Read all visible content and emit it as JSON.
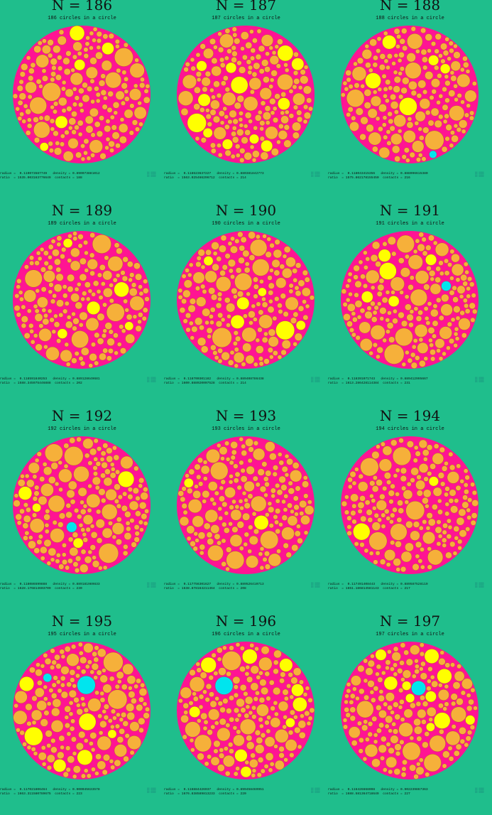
{
  "colors": {
    "background": "#1fbe8c",
    "disk": "#ff1493",
    "circle_orange": "#f6b03a",
    "circle_yellow": "#ffff00",
    "circle_cyan": "#00e5ee"
  },
  "panels": [
    {
      "title": "N = 186",
      "subtitle": "186 circles in a circle",
      "stats1": "radius =  0.119073587749   density = 0.890073881012",
      "stats2": "ratio  = 1535.003163776649  contacts = 188",
      "has_cyan": false
    },
    {
      "title": "N = 187",
      "subtitle": "187 circles in a circle",
      "stats1": "radius =  0.118623637227   density = 0.880381842773",
      "stats2": "ratio  = 1563.025466296712  contacts = 214",
      "has_cyan": false
    },
    {
      "title": "N = 188",
      "subtitle": "188 circles in a circle",
      "stats1": "radius =  0.118043415356   density = 0.888096615380",
      "stats2": "ratio  = 1575.862178155450  contacts = 216",
      "has_cyan": true
    },
    {
      "title": "N = 189",
      "subtitle": "189 circles in a circle",
      "stats1": "radius =  0.118591840253   density = 0.889128649681",
      "stats2": "ratio  = 1588.345975446888  contacts = 202",
      "has_cyan": false
    },
    {
      "title": "N = 190",
      "subtitle": "190 circles in a circle",
      "stats1": "radius =  0.118700301182   density = 0.889408786438",
      "stats2": "ratio  = 1600.888920007528  contacts = 214",
      "has_cyan": false
    },
    {
      "title": "N = 191",
      "subtitle": "191 circles in a circle",
      "stats1": "radius =  0.118391071743   density = 0.889412995667",
      "stats2": "ratio  = 1613.286428114384  contacts = 231",
      "has_cyan": true
    },
    {
      "title": "N = 192",
      "subtitle": "192 circles in a circle",
      "stats1": "radius =  0.118086599888   density = 0.889181989833",
      "stats2": "ratio  = 1628.176814603709  contacts = 230",
      "has_cyan": true
    },
    {
      "title": "N = 193",
      "subtitle": "193 circles in a circle",
      "stats1": "radius =  0.117756301627   density = 0.889526410713",
      "stats2": "ratio  = 1638.878164211464  contacts = 208",
      "has_cyan": false
    },
    {
      "title": "N = 194",
      "subtitle": "194 circles in a circle",
      "stats1": "radius =  0.117491408443   density = 0.889587528119",
      "stats2": "ratio  = 1651.186814581143  contacts = 217",
      "has_cyan": true
    },
    {
      "title": "N = 195",
      "subtitle": "195 circles in a circle",
      "stats1": "radius =  0.117021806464   density = 0.900045633578",
      "stats2": "ratio  = 1663.311580789675  contacts = 223",
      "has_cyan": true
    },
    {
      "title": "N = 196",
      "subtitle": "196 circles in a circle",
      "stats1": "radius =  0.116884426937   density = 0.899458469951",
      "stats2": "ratio  = 1676.838589813233  contacts = 220",
      "has_cyan": true
    },
    {
      "title": "N = 197",
      "subtitle": "197 circles in a circle",
      "stats1": "radius =  0.116426668098   density = 0.902239867363",
      "stats2": "ratio  = 1688.581364718649  contacts = 227",
      "has_cyan": true
    }
  ]
}
